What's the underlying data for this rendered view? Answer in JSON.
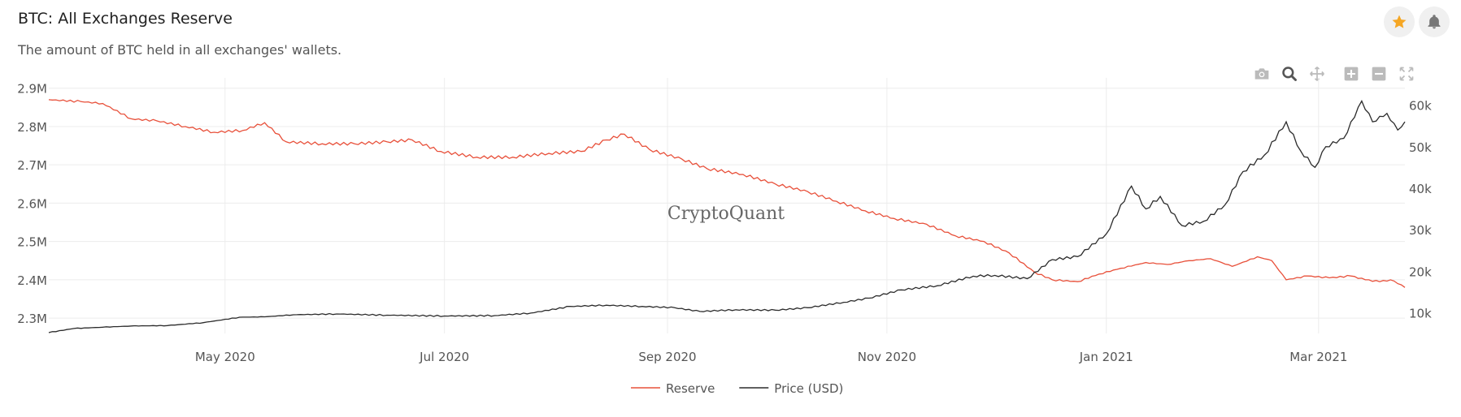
{
  "header": {
    "title": "BTC: All Exchanges Reserve",
    "subtitle": "The amount of BTC held in all exchanges' wallets.",
    "star_icon": "star-icon",
    "bell_icon": "bell-icon",
    "star_color": "#f5a623"
  },
  "toolbar": [
    "camera-icon",
    "zoom-icon",
    "pan-icon",
    "zoom-in-icon",
    "zoom-out-icon",
    "autoscale-icon"
  ],
  "watermark": "CryptoQuant",
  "chart_data": {
    "type": "line",
    "title": "BTC: All Exchanges Reserve",
    "xlabel": "",
    "x_range": [
      "2020-03-13",
      "2021-03-25"
    ],
    "x_ticks": [
      {
        "date": "2020-05-01",
        "label": "May 2020"
      },
      {
        "date": "2020-07-01",
        "label": "Jul 2020"
      },
      {
        "date": "2020-09-01",
        "label": "Sep 2020"
      },
      {
        "date": "2020-11-01",
        "label": "Nov 2020"
      },
      {
        "date": "2021-01-01",
        "label": "Jan 2021"
      },
      {
        "date": "2021-03-01",
        "label": "Mar 2021"
      }
    ],
    "y_left": {
      "range": [
        2260000,
        2910000
      ],
      "ticks": [
        2300000,
        2400000,
        2500000,
        2600000,
        2700000,
        2800000,
        2900000
      ],
      "tick_labels": [
        "2.3M",
        "2.4M",
        "2.5M",
        "2.6M",
        "2.7M",
        "2.8M",
        "2.9M"
      ]
    },
    "y_right": {
      "range": [
        5000,
        65000
      ],
      "ticks": [
        10000,
        20000,
        30000,
        40000,
        50000,
        60000
      ],
      "tick_labels": [
        "10k",
        "20k",
        "30k",
        "40k",
        "50k",
        "60k"
      ]
    },
    "grid": true,
    "legend": "bottom-center",
    "series": [
      {
        "name": "Reserve",
        "axis": "left",
        "color": "#e8503a",
        "points": [
          [
            "2020-03-13",
            2870000
          ],
          [
            "2020-03-22",
            2865000
          ],
          [
            "2020-03-28",
            2860000
          ],
          [
            "2020-04-05",
            2820000
          ],
          [
            "2020-04-12",
            2815000
          ],
          [
            "2020-04-20",
            2800000
          ],
          [
            "2020-04-28",
            2785000
          ],
          [
            "2020-05-06",
            2790000
          ],
          [
            "2020-05-12",
            2810000
          ],
          [
            "2020-05-18",
            2760000
          ],
          [
            "2020-05-28",
            2755000
          ],
          [
            "2020-06-06",
            2755000
          ],
          [
            "2020-06-15",
            2760000
          ],
          [
            "2020-06-22",
            2765000
          ],
          [
            "2020-06-30",
            2735000
          ],
          [
            "2020-07-10",
            2720000
          ],
          [
            "2020-07-20",
            2720000
          ],
          [
            "2020-07-30",
            2730000
          ],
          [
            "2020-08-08",
            2735000
          ],
          [
            "2020-08-15",
            2765000
          ],
          [
            "2020-08-20",
            2780000
          ],
          [
            "2020-08-27",
            2740000
          ],
          [
            "2020-09-05",
            2715000
          ],
          [
            "2020-09-12",
            2690000
          ],
          [
            "2020-09-22",
            2675000
          ],
          [
            "2020-10-01",
            2650000
          ],
          [
            "2020-10-10",
            2630000
          ],
          [
            "2020-10-18",
            2605000
          ],
          [
            "2020-10-26",
            2580000
          ],
          [
            "2020-11-03",
            2560000
          ],
          [
            "2020-11-12",
            2545000
          ],
          [
            "2020-11-20",
            2515000
          ],
          [
            "2020-11-28",
            2500000
          ],
          [
            "2020-12-05",
            2470000
          ],
          [
            "2020-12-12",
            2420000
          ],
          [
            "2020-12-17",
            2400000
          ],
          [
            "2020-12-24",
            2395000
          ],
          [
            "2020-12-30",
            2415000
          ],
          [
            "2021-01-05",
            2430000
          ],
          [
            "2021-01-12",
            2445000
          ],
          [
            "2021-01-18",
            2440000
          ],
          [
            "2021-01-24",
            2450000
          ],
          [
            "2021-01-30",
            2455000
          ],
          [
            "2021-02-05",
            2435000
          ],
          [
            "2021-02-12",
            2460000
          ],
          [
            "2021-02-16",
            2450000
          ],
          [
            "2021-02-20",
            2400000
          ],
          [
            "2021-02-26",
            2410000
          ],
          [
            "2021-03-04",
            2405000
          ],
          [
            "2021-03-10",
            2410000
          ],
          [
            "2021-03-14",
            2400000
          ],
          [
            "2021-03-18",
            2395000
          ],
          [
            "2021-03-21",
            2400000
          ],
          [
            "2021-03-23",
            2390000
          ],
          [
            "2021-03-25",
            2380000
          ]
        ]
      },
      {
        "name": "Price (USD)",
        "axis": "right",
        "color": "#2b2b2b",
        "points": [
          [
            "2020-03-13",
            5200
          ],
          [
            "2020-03-20",
            6200
          ],
          [
            "2020-03-28",
            6500
          ],
          [
            "2020-04-05",
            6800
          ],
          [
            "2020-04-15",
            6900
          ],
          [
            "2020-04-25",
            7600
          ],
          [
            "2020-05-05",
            8900
          ],
          [
            "2020-05-12",
            9000
          ],
          [
            "2020-05-20",
            9500
          ],
          [
            "2020-06-01",
            9700
          ],
          [
            "2020-06-15",
            9400
          ],
          [
            "2020-07-01",
            9200
          ],
          [
            "2020-07-15",
            9300
          ],
          [
            "2020-07-25",
            9900
          ],
          [
            "2020-08-05",
            11500
          ],
          [
            "2020-08-15",
            11800
          ],
          [
            "2020-08-25",
            11500
          ],
          [
            "2020-09-03",
            11200
          ],
          [
            "2020-09-10",
            10300
          ],
          [
            "2020-09-20",
            10700
          ],
          [
            "2020-10-01",
            10600
          ],
          [
            "2020-10-10",
            11200
          ],
          [
            "2020-10-20",
            12500
          ],
          [
            "2020-10-27",
            13500
          ],
          [
            "2020-11-05",
            15500
          ],
          [
            "2020-11-15",
            16500
          ],
          [
            "2020-11-25",
            18800
          ],
          [
            "2020-12-01",
            19000
          ],
          [
            "2020-12-10",
            18200
          ],
          [
            "2020-12-17",
            22800
          ],
          [
            "2020-12-24",
            23500
          ],
          [
            "2021-01-01",
            29000
          ],
          [
            "2021-01-08",
            40500
          ],
          [
            "2021-01-12",
            35000
          ],
          [
            "2021-01-16",
            38000
          ],
          [
            "2021-01-22",
            31000
          ],
          [
            "2021-01-28",
            32000
          ],
          [
            "2021-02-03",
            36000
          ],
          [
            "2021-02-08",
            44000
          ],
          [
            "2021-02-14",
            48000
          ],
          [
            "2021-02-20",
            56000
          ],
          [
            "2021-02-24",
            49000
          ],
          [
            "2021-02-28",
            45000
          ],
          [
            "2021-03-03",
            50000
          ],
          [
            "2021-03-08",
            52000
          ],
          [
            "2021-03-13",
            61000
          ],
          [
            "2021-03-16",
            56000
          ],
          [
            "2021-03-20",
            58000
          ],
          [
            "2021-03-23",
            54000
          ],
          [
            "2021-03-25",
            56000
          ]
        ]
      }
    ]
  }
}
